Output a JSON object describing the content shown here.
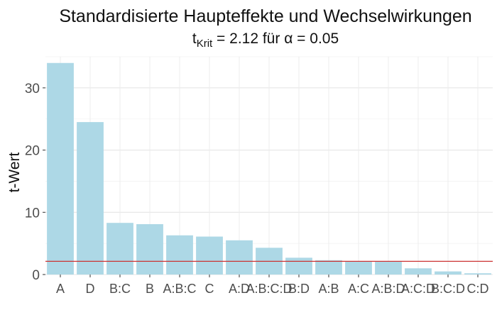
{
  "chart_data": {
    "type": "bar",
    "title": "Standardisierte Haupteffekte und Wechselwirkungen",
    "subtitle_parts": {
      "base": "t",
      "sub": "Krit",
      "rest": " = 2.12 für ",
      "alpha": "α",
      "alpha_rest": " = 0.05"
    },
    "xlabel": "",
    "ylabel": "t-Wert",
    "categories": [
      "A",
      "D",
      "B:C",
      "B",
      "A:B:C",
      "C",
      "A:D",
      "A:B:C:D",
      "B:D",
      "A:B",
      "A:C",
      "A:B:D",
      "A:C:D",
      "B:C:D",
      "C:D"
    ],
    "values": [
      34.0,
      24.5,
      8.3,
      8.1,
      6.3,
      6.1,
      5.5,
      4.3,
      2.7,
      2.3,
      2.1,
      2.1,
      1.0,
      0.5,
      0.2
    ],
    "ylim": [
      0,
      35
    ],
    "yticks": [
      0,
      10,
      20,
      30
    ],
    "ytick_labels": [
      "0",
      "10",
      "20",
      "30"
    ],
    "reference_line": {
      "value": 2.12,
      "color": "#cc3333"
    },
    "bar_color": "#add8e6",
    "grid": true
  }
}
